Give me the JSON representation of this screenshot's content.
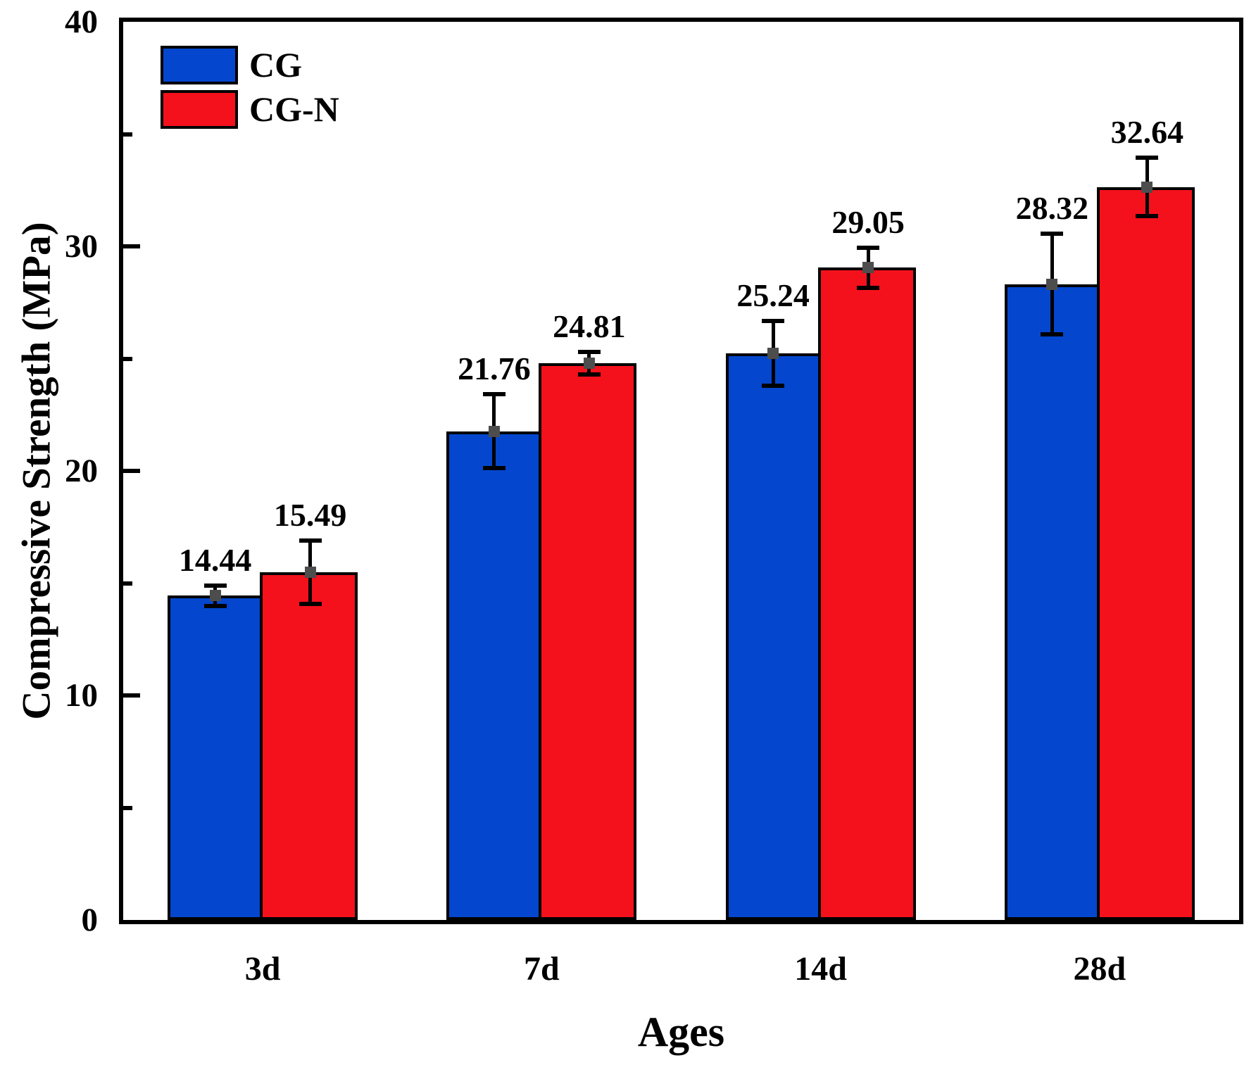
{
  "chart_data": {
    "type": "bar",
    "title": "",
    "xlabel": "Ages",
    "ylabel": "Compressive Strength (MPa)",
    "categories": [
      "3d",
      "7d",
      "14d",
      "28d"
    ],
    "series": [
      {
        "name": "CG",
        "color": "#0447CE",
        "values": [
          14.44,
          21.76,
          25.24,
          28.32
        ],
        "errors": [
          0.45,
          1.65,
          1.45,
          2.25
        ],
        "value_labels": [
          "14.44",
          "21.76",
          "25.24",
          "28.32"
        ]
      },
      {
        "name": "CG-N",
        "color": "#F4111C",
        "values": [
          15.49,
          24.81,
          29.05,
          32.64
        ],
        "errors": [
          1.4,
          0.5,
          0.9,
          1.3
        ],
        "value_labels": [
          "15.49",
          "24.81",
          "29.05",
          "32.64"
        ]
      }
    ],
    "ylim": [
      0,
      40
    ],
    "y_major_ticks": [
      0,
      10,
      20,
      30,
      40
    ],
    "y_minor_ticks": [
      5,
      15,
      25,
      35
    ],
    "grid": false,
    "legend_position": "top-left",
    "axis_color": "#000000",
    "error_bar_color": "#000000",
    "error_marker_color": "#4D4D4D",
    "background_color": "#FFFFFF"
  }
}
